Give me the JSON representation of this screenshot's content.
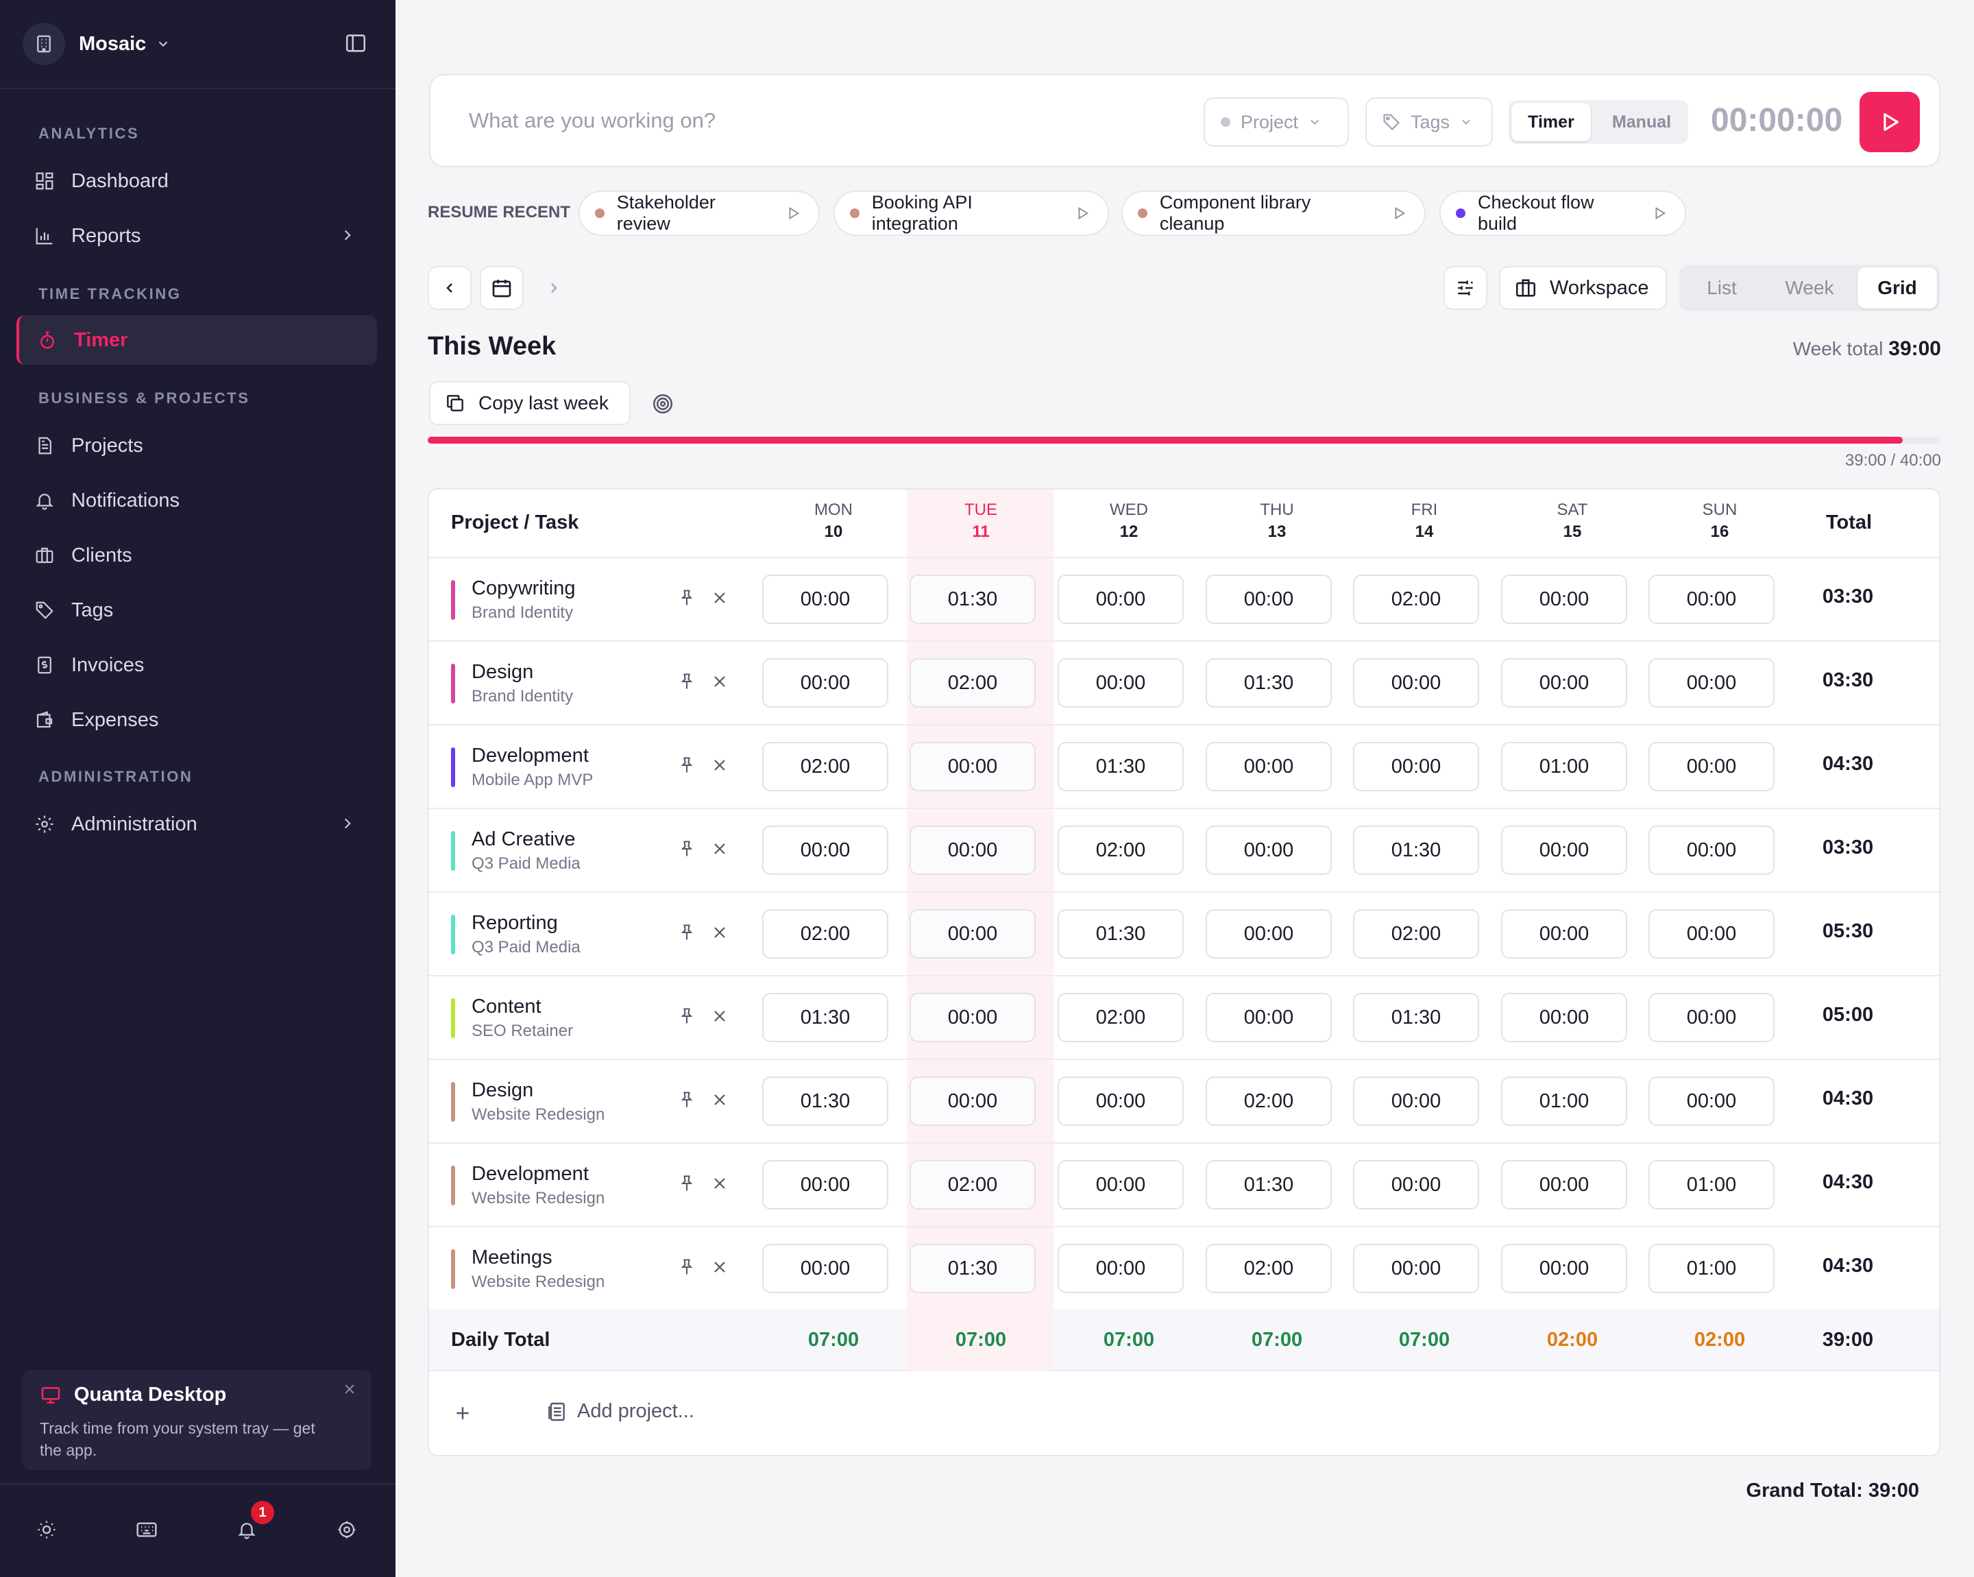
{
  "workspace": {
    "name": "Mosaic"
  },
  "sidebar": {
    "sections": [
      "ANALYTICS",
      "TIME TRACKING",
      "BUSINESS & PROJECTS",
      "ADMINISTRATION"
    ],
    "items": {
      "dashboard": "Dashboard",
      "reports": "Reports",
      "timer": "Timer",
      "projects": "Projects",
      "notifications": "Notifications",
      "clients": "Clients",
      "tags": "Tags",
      "invoices": "Invoices",
      "expenses": "Expenses",
      "administration": "Administration"
    },
    "promo": {
      "title": "Quanta Desktop",
      "text": "Track time from your system tray — get the app."
    },
    "notification_count": "1"
  },
  "topbar": {
    "placeholder": "What are you working on?",
    "project_label": "Project",
    "tags_label": "Tags",
    "mode_timer": "Timer",
    "mode_manual": "Manual",
    "clock": "00:00:00"
  },
  "resume": {
    "label": "RESUME RECENT",
    "items": [
      {
        "label": "Stakeholder review",
        "color": "#c9917e"
      },
      {
        "label": "Booking API integration",
        "color": "#c9917e"
      },
      {
        "label": "Component library cleanup",
        "color": "#c9917e"
      },
      {
        "label": "Checkout flow build",
        "color": "#6a3cf0"
      }
    ]
  },
  "toolbar": {
    "workspace_label": "Workspace",
    "views": [
      "List",
      "Week",
      "Grid"
    ],
    "active_view": "Grid"
  },
  "week": {
    "title": "This Week",
    "total_label": "Week total",
    "total_value": "39:00",
    "copy_label": "Copy last week",
    "progress_label": "39:00 / 40:00",
    "progress_fraction": 0.975
  },
  "grid": {
    "header_task": "Project / Task",
    "header_total": "Total",
    "days": [
      {
        "name": "MON",
        "date": "10"
      },
      {
        "name": "TUE",
        "date": "11"
      },
      {
        "name": "WED",
        "date": "12"
      },
      {
        "name": "THU",
        "date": "13"
      },
      {
        "name": "FRI",
        "date": "14"
      },
      {
        "name": "SAT",
        "date": "15"
      },
      {
        "name": "SUN",
        "date": "16"
      }
    ],
    "rows": [
      {
        "task": "Copywriting",
        "project": "Brand Identity",
        "color": "#d6459b",
        "hours": [
          "00:00",
          "01:30",
          "00:00",
          "00:00",
          "02:00",
          "00:00",
          "00:00"
        ],
        "total": "03:30"
      },
      {
        "task": "Design",
        "project": "Brand Identity",
        "color": "#d6459b",
        "hours": [
          "00:00",
          "02:00",
          "00:00",
          "01:30",
          "00:00",
          "00:00",
          "00:00"
        ],
        "total": "03:30"
      },
      {
        "task": "Development",
        "project": "Mobile App MVP",
        "color": "#6a3cf0",
        "hours": [
          "02:00",
          "00:00",
          "01:30",
          "00:00",
          "00:00",
          "01:00",
          "00:00"
        ],
        "total": "04:30"
      },
      {
        "task": "Ad Creative",
        "project": "Q3 Paid Media",
        "color": "#5ce0c8",
        "hours": [
          "00:00",
          "00:00",
          "02:00",
          "00:00",
          "01:30",
          "00:00",
          "00:00"
        ],
        "total": "03:30"
      },
      {
        "task": "Reporting",
        "project": "Q3 Paid Media",
        "color": "#5ce0c8",
        "hours": [
          "02:00",
          "00:00",
          "01:30",
          "00:00",
          "02:00",
          "00:00",
          "00:00"
        ],
        "total": "05:30"
      },
      {
        "task": "Content",
        "project": "SEO Retainer",
        "color": "#b7e635",
        "hours": [
          "01:30",
          "00:00",
          "02:00",
          "00:00",
          "01:30",
          "00:00",
          "00:00"
        ],
        "total": "05:00"
      },
      {
        "task": "Design",
        "project": "Website Redesign",
        "color": "#c9917e",
        "hours": [
          "01:30",
          "00:00",
          "00:00",
          "02:00",
          "00:00",
          "01:00",
          "00:00"
        ],
        "total": "04:30"
      },
      {
        "task": "Development",
        "project": "Website Redesign",
        "color": "#c9917e",
        "hours": [
          "00:00",
          "02:00",
          "00:00",
          "01:30",
          "00:00",
          "00:00",
          "01:00"
        ],
        "total": "04:30"
      },
      {
        "task": "Meetings",
        "project": "Website Redesign",
        "color": "#c9917e",
        "hours": [
          "00:00",
          "01:30",
          "00:00",
          "02:00",
          "00:00",
          "00:00",
          "01:00"
        ],
        "total": "04:30"
      }
    ],
    "daily_label": "Daily Total",
    "daily_totals": [
      "07:00",
      "07:00",
      "07:00",
      "07:00",
      "07:00",
      "02:00",
      "02:00"
    ],
    "daily_colors": [
      "#1f8a4c",
      "#1f8a4c",
      "#1f8a4c",
      "#1f8a4c",
      "#1f8a4c",
      "#e07b12",
      "#e07b12"
    ],
    "grand_week": "39:00",
    "add_project": "Add project..."
  },
  "grand_total": "Grand Total: 39:00",
  "colors": {
    "accent": "#f0245e",
    "sidebar_bg": "#1c1b32"
  }
}
